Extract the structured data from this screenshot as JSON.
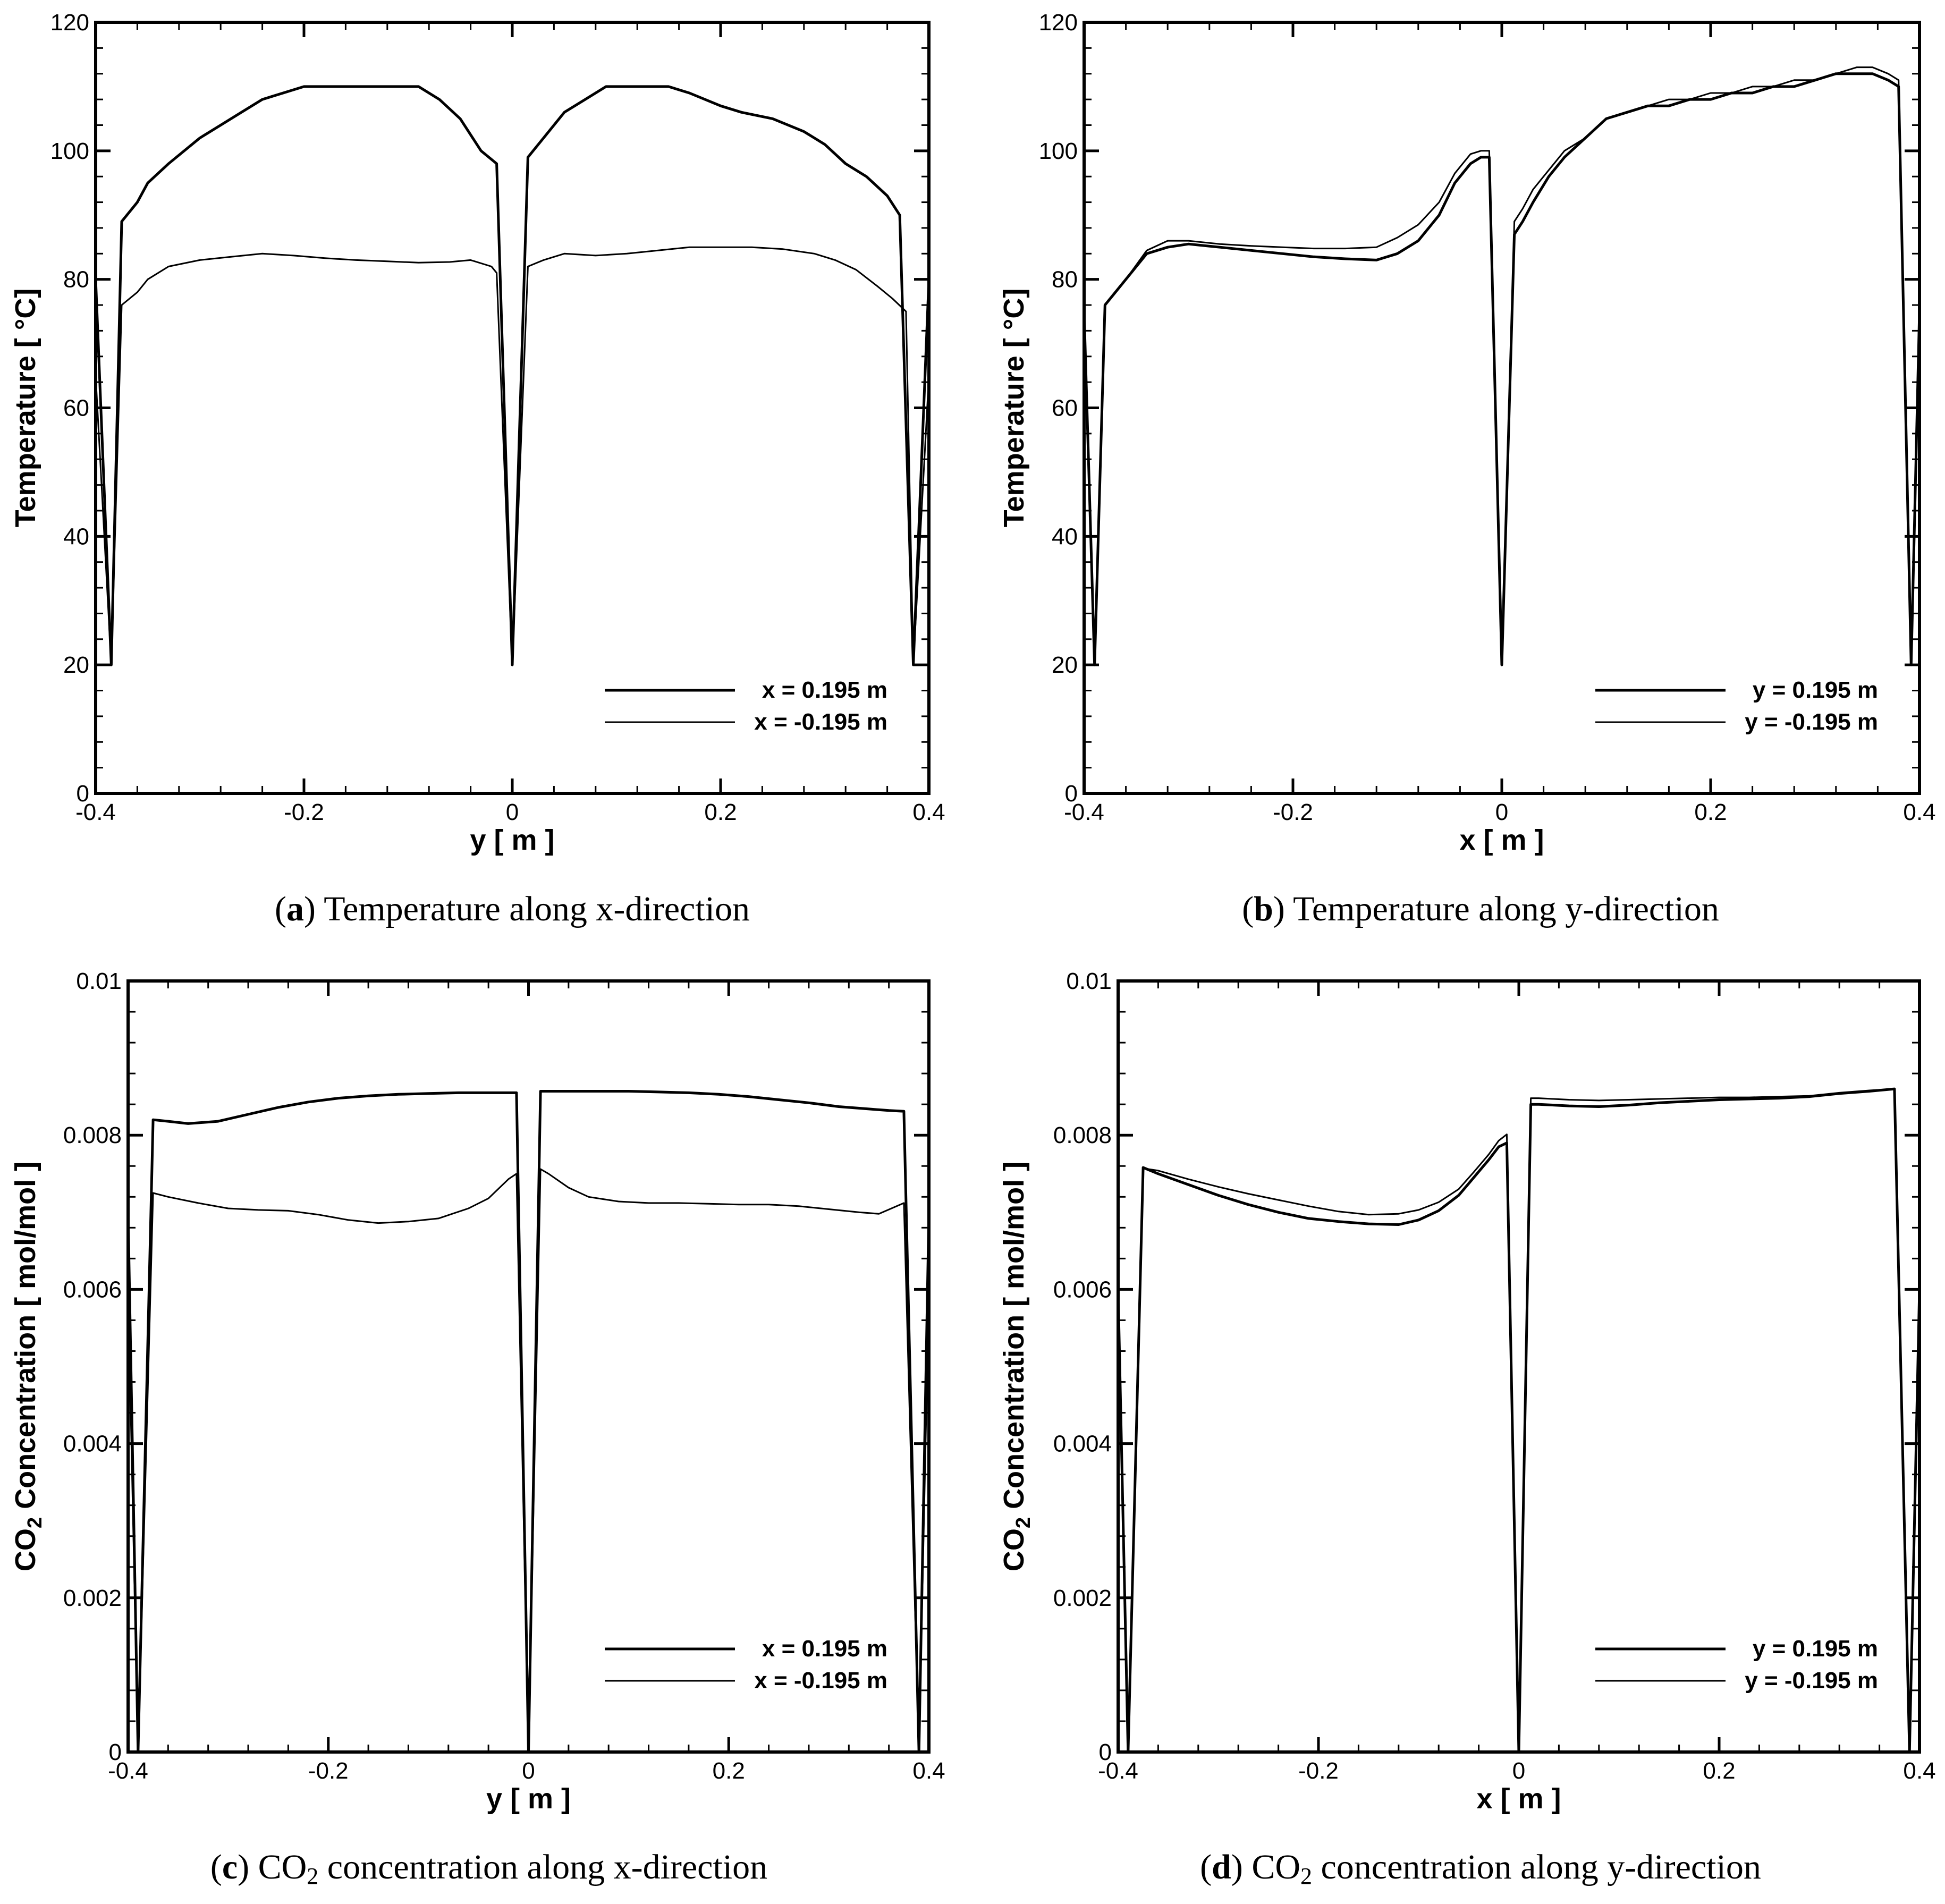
{
  "chart_data": [
    {
      "type": "line",
      "panel": "a",
      "caption": {
        "letter": "a",
        "text": "Temperature along x-direction"
      },
      "xlabel": "y [ m ]",
      "ylabel": "Temperature [ °C]",
      "xlim": [
        -0.4,
        0.4
      ],
      "ylim": [
        0,
        120
      ],
      "xticks": [
        -0.4,
        -0.2,
        0,
        0.2,
        0.4
      ],
      "xtick_labels": [
        "-0.4",
        "-0.2",
        "0",
        "0.2",
        "0.4"
      ],
      "yticks": [
        0,
        20,
        40,
        60,
        80,
        100,
        120
      ],
      "ytick_labels": [
        "0",
        "20",
        "40",
        "60",
        "80",
        "100",
        "120"
      ],
      "legend_position": "bottom-right",
      "series": [
        {
          "name": "x = 0.195 m",
          "line_width": 5,
          "x": [
            -0.4,
            -0.385,
            -0.375,
            -0.36,
            -0.35,
            -0.33,
            -0.3,
            -0.28,
            -0.26,
            -0.24,
            -0.22,
            -0.2,
            -0.18,
            -0.15,
            -0.12,
            -0.09,
            -0.07,
            -0.05,
            -0.03,
            -0.015,
            0.0,
            0.015,
            0.03,
            0.05,
            0.07,
            0.09,
            0.12,
            0.15,
            0.17,
            0.2,
            0.22,
            0.25,
            0.28,
            0.3,
            0.32,
            0.34,
            0.36,
            0.372,
            0.385,
            0.4
          ],
          "y": [
            80,
            20,
            89,
            92,
            95,
            98,
            102,
            104,
            106,
            108,
            109,
            110,
            110,
            110,
            110,
            110,
            108,
            105,
            100,
            98,
            20,
            99,
            102,
            106,
            108,
            110,
            110,
            110,
            109,
            107,
            106,
            105,
            103,
            101,
            98,
            96,
            93,
            90,
            20,
            80
          ]
        },
        {
          "name": "x = -0.195 m",
          "line_width": 3,
          "x": [
            -0.4,
            -0.385,
            -0.375,
            -0.36,
            -0.35,
            -0.33,
            -0.3,
            -0.27,
            -0.24,
            -0.21,
            -0.18,
            -0.15,
            -0.12,
            -0.09,
            -0.06,
            -0.04,
            -0.02,
            -0.015,
            0.0,
            0.015,
            0.03,
            0.05,
            0.08,
            0.11,
            0.14,
            0.17,
            0.2,
            0.23,
            0.26,
            0.29,
            0.31,
            0.33,
            0.35,
            0.365,
            0.378,
            0.385,
            0.4
          ],
          "y": [
            65,
            20,
            76,
            78,
            80,
            82,
            83,
            83.5,
            84,
            83.7,
            83.3,
            83.0,
            82.8,
            82.6,
            82.7,
            83,
            82.0,
            81,
            20,
            82,
            83,
            84,
            83.7,
            84,
            84.5,
            85,
            85,
            85,
            84.7,
            84,
            83,
            81.5,
            79,
            77,
            75,
            20,
            65
          ]
        }
      ]
    },
    {
      "type": "line",
      "panel": "b",
      "caption": {
        "letter": "b",
        "text": "Temperature along y-direction"
      },
      "xlabel": "x [ m ]",
      "ylabel": "Temperature [ °C]",
      "xlim": [
        -0.4,
        0.4
      ],
      "ylim": [
        0,
        120
      ],
      "xticks": [
        -0.4,
        -0.2,
        0,
        0.2,
        0.4
      ],
      "xtick_labels": [
        "-0.4",
        "-0.2",
        "0",
        "0.2",
        "0.4"
      ],
      "yticks": [
        0,
        20,
        40,
        60,
        80,
        100,
        120
      ],
      "ytick_labels": [
        "0",
        "20",
        "40",
        "60",
        "80",
        "100",
        "120"
      ],
      "legend_position": "bottom-right",
      "series": [
        {
          "name": "y = 0.195 m",
          "line_width": 5,
          "x": [
            -0.4,
            -0.39,
            -0.38,
            -0.36,
            -0.34,
            -0.32,
            -0.3,
            -0.27,
            -0.24,
            -0.21,
            -0.18,
            -0.15,
            -0.12,
            -0.1,
            -0.08,
            -0.06,
            -0.045,
            -0.03,
            -0.02,
            -0.012,
            0.0,
            0.012,
            0.02,
            0.03,
            0.045,
            0.06,
            0.08,
            0.1,
            0.12,
            0.14,
            0.16,
            0.18,
            0.2,
            0.22,
            0.24,
            0.26,
            0.28,
            0.3,
            0.32,
            0.34,
            0.355,
            0.37,
            0.38,
            0.392,
            0.4
          ],
          "y": [
            75,
            20,
            76,
            80,
            84,
            85,
            85.5,
            85,
            84.5,
            84,
            83.5,
            83.2,
            83,
            84,
            86,
            90,
            95,
            98,
            99,
            99,
            20,
            87,
            89,
            92,
            96,
            99,
            102,
            105,
            106,
            107,
            107,
            108,
            108,
            109,
            109,
            110,
            110,
            111,
            112,
            112,
            112,
            111,
            110,
            20,
            75
          ]
        },
        {
          "name": "y = -0.195 m",
          "line_width": 3,
          "x": [
            -0.4,
            -0.39,
            -0.38,
            -0.36,
            -0.34,
            -0.32,
            -0.3,
            -0.27,
            -0.24,
            -0.21,
            -0.18,
            -0.15,
            -0.12,
            -0.1,
            -0.08,
            -0.06,
            -0.045,
            -0.03,
            -0.02,
            -0.012,
            0.0,
            0.012,
            0.02,
            0.03,
            0.045,
            0.06,
            0.08,
            0.1,
            0.12,
            0.14,
            0.16,
            0.18,
            0.2,
            0.22,
            0.24,
            0.26,
            0.28,
            0.3,
            0.32,
            0.34,
            0.355,
            0.37,
            0.38,
            0.392,
            0.4
          ],
          "y": [
            75,
            20,
            76,
            80,
            84.5,
            86,
            86,
            85.5,
            85.2,
            85,
            84.8,
            84.8,
            85,
            86.5,
            88.5,
            92,
            96.5,
            99.5,
            100,
            100,
            20,
            89,
            91,
            94,
            97,
            100,
            102,
            105,
            106,
            107,
            108,
            108,
            109,
            109,
            110,
            110,
            111,
            111,
            112,
            113,
            113,
            112,
            111,
            20,
            75
          ]
        }
      ]
    },
    {
      "type": "line",
      "panel": "c",
      "caption": {
        "letter": "c",
        "text_before": "CO",
        "sub": "2",
        "text_after": " concentration along x-direction"
      },
      "xlabel": "y [ m ]",
      "ylabel": {
        "before": "CO",
        "sub": "2",
        "after": " Concentration [ mol/mol ]"
      },
      "xlim": [
        -0.4,
        0.4
      ],
      "ylim": [
        0,
        0.01
      ],
      "xticks": [
        -0.4,
        -0.2,
        0,
        0.2,
        0.4
      ],
      "xtick_labels": [
        "-0.4",
        "-0.2",
        "0",
        "0.2",
        "0.4"
      ],
      "yticks": [
        0,
        0.002,
        0.004,
        0.006,
        0.008,
        0.01
      ],
      "ytick_labels": [
        "0",
        "0.002",
        "0.004",
        "0.006",
        "0.008",
        "0.01"
      ],
      "legend_position": "bottom-right",
      "series": [
        {
          "name": "x = 0.195 m",
          "line_width": 5,
          "x": [
            -0.4,
            -0.39,
            -0.375,
            -0.36,
            -0.34,
            -0.31,
            -0.28,
            -0.25,
            -0.22,
            -0.19,
            -0.16,
            -0.13,
            -0.1,
            -0.07,
            -0.04,
            -0.02,
            -0.012,
            0.0,
            0.012,
            0.02,
            0.04,
            0.07,
            0.1,
            0.13,
            0.16,
            0.19,
            0.22,
            0.25,
            0.28,
            0.31,
            0.34,
            0.36,
            0.375,
            0.39,
            0.4
          ],
          "y": [
            0.007,
            0.0,
            0.0082,
            0.00818,
            0.00815,
            0.00818,
            0.00827,
            0.00836,
            0.00843,
            0.00848,
            0.00851,
            0.00853,
            0.00854,
            0.00855,
            0.00855,
            0.00855,
            0.00855,
            0.0,
            0.00857,
            0.00857,
            0.00857,
            0.00857,
            0.00857,
            0.00856,
            0.00855,
            0.00853,
            0.0085,
            0.00846,
            0.00842,
            0.00837,
            0.00834,
            0.00832,
            0.00831,
            0.0,
            0.007
          ]
        },
        {
          "name": "x = -0.195 m",
          "line_width": 3,
          "x": [
            -0.4,
            -0.39,
            -0.375,
            -0.36,
            -0.33,
            -0.3,
            -0.27,
            -0.24,
            -0.21,
            -0.18,
            -0.15,
            -0.12,
            -0.09,
            -0.06,
            -0.04,
            -0.02,
            -0.012,
            0.0,
            0.012,
            0.02,
            0.04,
            0.06,
            0.09,
            0.12,
            0.15,
            0.18,
            0.21,
            0.24,
            0.27,
            0.3,
            0.33,
            0.35,
            0.375,
            0.39,
            0.4
          ],
          "y": [
            0.006,
            0.0,
            0.00725,
            0.0072,
            0.00712,
            0.00705,
            0.00703,
            0.00702,
            0.00697,
            0.0069,
            0.00686,
            0.00688,
            0.00692,
            0.00705,
            0.00718,
            0.00743,
            0.0075,
            0.0,
            0.00756,
            0.0075,
            0.00732,
            0.0072,
            0.00714,
            0.00712,
            0.00712,
            0.00711,
            0.0071,
            0.0071,
            0.00708,
            0.00704,
            0.007,
            0.00698,
            0.00712,
            0.0,
            0.006
          ]
        }
      ]
    },
    {
      "type": "line",
      "panel": "d",
      "caption": {
        "letter": "d",
        "text_before": "CO",
        "sub": "2",
        "text_after": " concentration along y-direction"
      },
      "xlabel": "x [ m ]",
      "ylabel": {
        "before": "CO",
        "sub": "2",
        "after": " Concentration [ mol/mol ]"
      },
      "xlim": [
        -0.4,
        0.4
      ],
      "ylim": [
        0,
        0.01
      ],
      "xticks": [
        -0.4,
        -0.2,
        0,
        0.2,
        0.4
      ],
      "xtick_labels": [
        "-0.4",
        "-0.2",
        "0",
        "0.2",
        "0.4"
      ],
      "yticks": [
        0,
        0.002,
        0.004,
        0.006,
        0.008,
        0.01
      ],
      "ytick_labels": [
        "0",
        "0.002",
        "0.004",
        "0.006",
        "0.008",
        "0.01"
      ],
      "legend_position": "bottom-right",
      "series": [
        {
          "name": "y = 0.195 m",
          "line_width": 5,
          "x": [
            -0.4,
            -0.39,
            -0.375,
            -0.36,
            -0.33,
            -0.3,
            -0.27,
            -0.24,
            -0.21,
            -0.18,
            -0.15,
            -0.12,
            -0.1,
            -0.08,
            -0.06,
            -0.045,
            -0.03,
            -0.02,
            -0.012,
            0.0,
            0.012,
            0.02,
            0.05,
            0.08,
            0.11,
            0.14,
            0.17,
            0.2,
            0.23,
            0.26,
            0.29,
            0.32,
            0.35,
            0.375,
            0.39,
            0.4
          ],
          "y": [
            0.006,
            0.0,
            0.00758,
            0.0075,
            0.00736,
            0.00722,
            0.0071,
            0.007,
            0.00692,
            0.00688,
            0.00685,
            0.00684,
            0.0069,
            0.00702,
            0.00722,
            0.00745,
            0.00768,
            0.00785,
            0.0079,
            0.0,
            0.0084,
            0.0084,
            0.00838,
            0.00837,
            0.00839,
            0.00842,
            0.00844,
            0.00846,
            0.00847,
            0.00848,
            0.0085,
            0.00854,
            0.00857,
            0.0086,
            0.0,
            0.006
          ]
        },
        {
          "name": "y = -0.195 m",
          "line_width": 3,
          "x": [
            -0.4,
            -0.39,
            -0.375,
            -0.36,
            -0.33,
            -0.3,
            -0.27,
            -0.24,
            -0.21,
            -0.18,
            -0.15,
            -0.12,
            -0.1,
            -0.08,
            -0.06,
            -0.045,
            -0.03,
            -0.02,
            -0.012,
            0.0,
            0.012,
            0.02,
            0.05,
            0.08,
            0.11,
            0.14,
            0.17,
            0.2,
            0.23,
            0.26,
            0.29,
            0.32,
            0.35,
            0.375,
            0.39,
            0.4
          ],
          "y": [
            0.006,
            0.0,
            0.00757,
            0.00754,
            0.00743,
            0.00733,
            0.00724,
            0.00716,
            0.00708,
            0.00701,
            0.00697,
            0.00698,
            0.00703,
            0.00713,
            0.0073,
            0.00752,
            0.00775,
            0.00793,
            0.00801,
            0.0,
            0.00848,
            0.00848,
            0.00846,
            0.00845,
            0.00846,
            0.00847,
            0.00848,
            0.00849,
            0.00849,
            0.0085,
            0.00851,
            0.00855,
            0.00858,
            0.0086,
            0.0,
            0.006
          ]
        }
      ]
    }
  ]
}
